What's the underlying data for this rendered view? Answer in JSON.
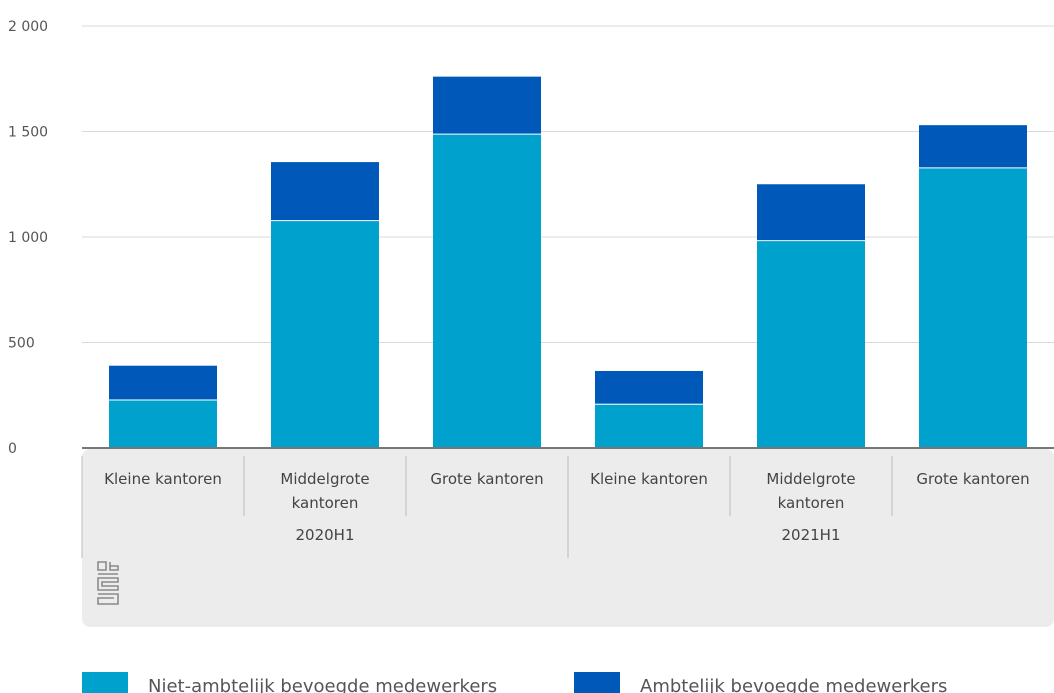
{
  "chart_data": {
    "type": "bar",
    "stacked": true,
    "groups": [
      {
        "label": "2020H1",
        "categories": [
          "Kleine kantoren",
          "Middelgrote kantoren",
          "Grote kantoren"
        ]
      },
      {
        "label": "2021H1",
        "categories": [
          "Kleine kantoren",
          "Middelgrote kantoren",
          "Grote kantoren"
        ]
      }
    ],
    "categories": [
      "Kleine kantoren",
      "Middelgrote kantoren",
      "Grote kantoren",
      "Kleine kantoren",
      "Middelgrote kantoren",
      "Grote kantoren"
    ],
    "series": [
      {
        "name": "Niet-ambtelijk bevoegde medewerkers",
        "color": "#00a1cd",
        "values": [
          230,
          1080,
          1490,
          210,
          985,
          1330
        ]
      },
      {
        "name": "Ambtelijk bevoegde medewerkers",
        "color": "#0058b8",
        "values": [
          160,
          275,
          270,
          155,
          265,
          200
        ]
      }
    ],
    "ylim": [
      0,
      2000
    ],
    "yticks": [
      0,
      500,
      1000,
      1500,
      2000
    ],
    "ytick_labels": [
      "0",
      "500",
      "1 000",
      "1 500",
      "2 000"
    ],
    "grid": true,
    "legend_position": "bottom",
    "logo": "cbs-logo-icon"
  }
}
